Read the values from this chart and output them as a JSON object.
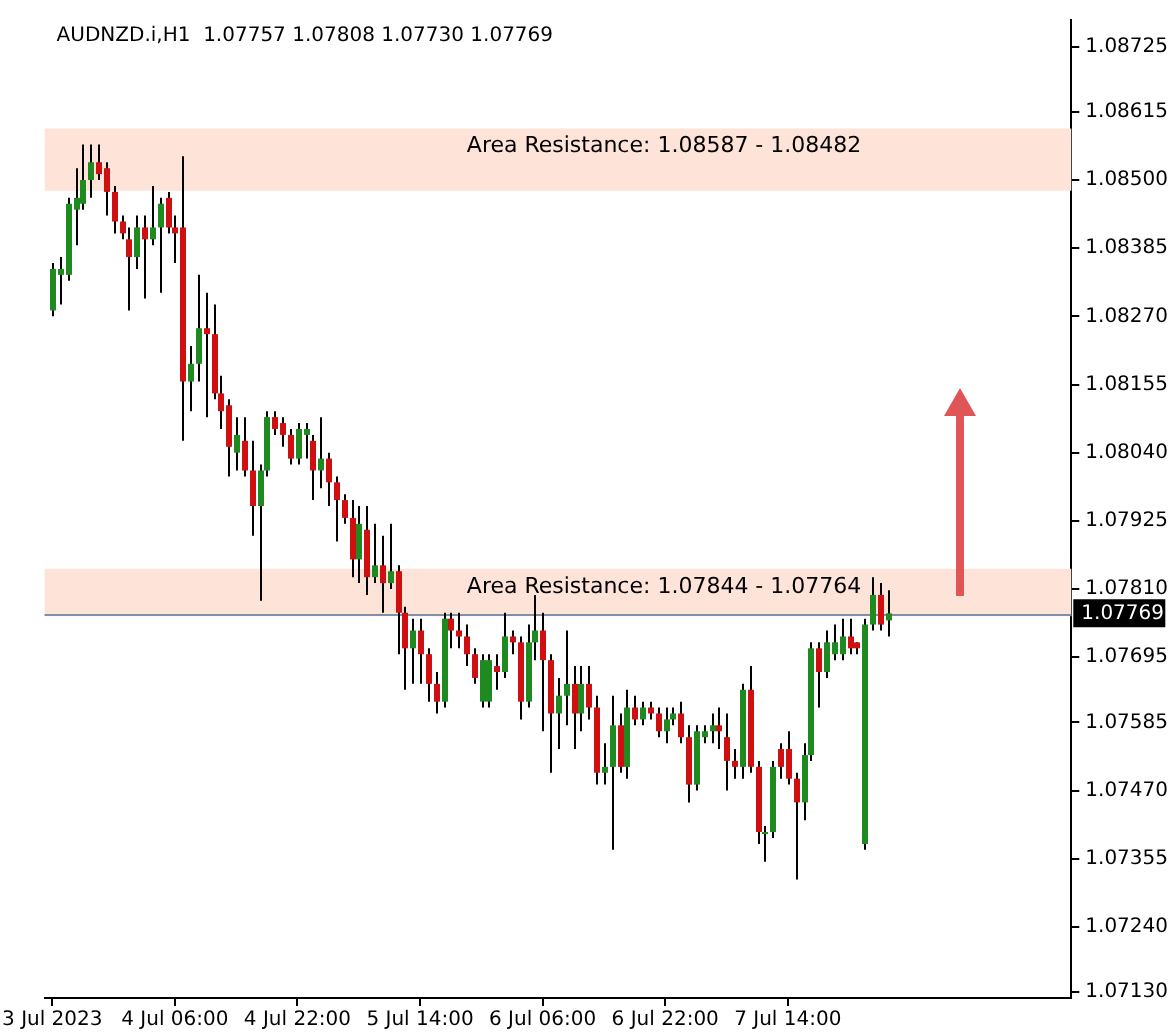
{
  "chart_data": {
    "type": "candlestick",
    "title": "AUDNZD.i,H1  1.07757 1.07808 1.07730 1.07769",
    "x": [
      "2023-07-03T14:00",
      "2023-07-03T15:00",
      "2023-07-03T16:00",
      "2023-07-03T17:00",
      "2023-07-03T18:00",
      "2023-07-03T19:00",
      "2023-07-03T20:00",
      "2023-07-03T21:00",
      "2023-07-03T22:00",
      "2023-07-03T23:00",
      "2023-07-04T00:00",
      "2023-07-04T01:00",
      "2023-07-04T02:00",
      "2023-07-04T03:00",
      "2023-07-04T04:00",
      "2023-07-04T05:00",
      "2023-07-04T06:00",
      "2023-07-04T07:00",
      "2023-07-04T08:00",
      "2023-07-04T09:00",
      "2023-07-04T10:00",
      "2023-07-04T11:00",
      "2023-07-04T12:00",
      "2023-07-04T13:00",
      "2023-07-04T14:00",
      "2023-07-04T15:00",
      "2023-07-04T16:00",
      "2023-07-04T17:00",
      "2023-07-04T18:00",
      "2023-07-04T19:00",
      "2023-07-04T20:00",
      "2023-07-04T21:00",
      "2023-07-04T22:00",
      "2023-07-04T23:00",
      "2023-07-05T00:00",
      "2023-07-05T01:00",
      "2023-07-05T02:00",
      "2023-07-05T03:00",
      "2023-07-05T04:00",
      "2023-07-05T05:00",
      "2023-07-05T06:00",
      "2023-07-05T07:00",
      "2023-07-05T08:00",
      "2023-07-05T09:00",
      "2023-07-05T10:00",
      "2023-07-05T11:00",
      "2023-07-05T12:00",
      "2023-07-05T13:00",
      "2023-07-05T14:00",
      "2023-07-05T15:00",
      "2023-07-05T16:00",
      "2023-07-05T17:00",
      "2023-07-05T18:00",
      "2023-07-05T19:00",
      "2023-07-05T20:00",
      "2023-07-05T21:00",
      "2023-07-05T22:00",
      "2023-07-05T23:00",
      "2023-07-06T00:00",
      "2023-07-06T01:00",
      "2023-07-06T02:00",
      "2023-07-06T03:00",
      "2023-07-06T04:00",
      "2023-07-06T05:00",
      "2023-07-06T06:00",
      "2023-07-06T07:00",
      "2023-07-06T08:00",
      "2023-07-06T09:00",
      "2023-07-06T10:00",
      "2023-07-06T11:00",
      "2023-07-06T12:00",
      "2023-07-06T13:00",
      "2023-07-06T14:00",
      "2023-07-06T15:00",
      "2023-07-06T16:00",
      "2023-07-06T17:00",
      "2023-07-06T18:00",
      "2023-07-06T19:00",
      "2023-07-06T20:00",
      "2023-07-06T21:00",
      "2023-07-06T22:00",
      "2023-07-06T23:00",
      "2023-07-07T00:00",
      "2023-07-07T01:00",
      "2023-07-07T02:00",
      "2023-07-07T03:00",
      "2023-07-07T04:00",
      "2023-07-07T05:00",
      "2023-07-07T06:00",
      "2023-07-07T07:00",
      "2023-07-07T08:00",
      "2023-07-07T09:00",
      "2023-07-07T10:00",
      "2023-07-07T11:00",
      "2023-07-07T12:00",
      "2023-07-07T13:00",
      "2023-07-07T14:00",
      "2023-07-07T15:00",
      "2023-07-07T16:00",
      "2023-07-07T17:00",
      "2023-07-07T18:00",
      "2023-07-07T19:00",
      "2023-07-07T20:00",
      "2023-07-07T21:00",
      "2023-07-07T22:00",
      "2023-07-07T23:00",
      "2023-07-08T00:00",
      "2023-07-08T01:00",
      "2023-07-08T02:00",
      "2023-07-08T03:00"
    ],
    "xlim": [
      "2023-07-03T13:00",
      "2023-07-09T03:00"
    ],
    "xticks": [
      {
        "value": "2023-07-03T14:00",
        "label": "3 Jul 2023"
      },
      {
        "value": "2023-07-04T06:00",
        "label": "4 Jul 06:00"
      },
      {
        "value": "2023-07-04T22:00",
        "label": "4 Jul 22:00"
      },
      {
        "value": "2023-07-05T14:00",
        "label": "5 Jul 14:00"
      },
      {
        "value": "2023-07-06T06:00",
        "label": "6 Jul 06:00"
      },
      {
        "value": "2023-07-06T22:00",
        "label": "6 Jul 22:00"
      },
      {
        "value": "2023-07-07T14:00",
        "label": "7 Jul 14:00"
      }
    ],
    "ohlc": [
      [
        1.0828,
        1.0836,
        1.0827,
        1.0835
      ],
      [
        1.0834,
        1.0837,
        1.0829,
        1.0835
      ],
      [
        1.0834,
        1.0847,
        1.0833,
        1.0846
      ],
      [
        1.0845,
        1.0852,
        1.0839,
        1.0847
      ],
      [
        1.0846,
        1.0856,
        1.0845,
        1.085
      ],
      [
        1.085,
        1.0856,
        1.0847,
        1.0853
      ],
      [
        1.0853,
        1.0856,
        1.085,
        1.0851
      ],
      [
        1.0852,
        1.0853,
        1.0844,
        1.0848
      ],
      [
        1.0848,
        1.0849,
        1.0841,
        1.0843
      ],
      [
        1.0843,
        1.0844,
        1.084,
        1.0841
      ],
      [
        1.084,
        1.0842,
        1.0828,
        1.0837
      ],
      [
        1.0837,
        1.0844,
        1.0835,
        1.0842
      ],
      [
        1.0842,
        1.0844,
        1.083,
        1.084
      ],
      [
        1.084,
        1.0849,
        1.0839,
        1.0842
      ],
      [
        1.0842,
        1.0847,
        1.0831,
        1.0846
      ],
      [
        1.0847,
        1.0848,
        1.0841,
        1.0842
      ],
      [
        1.0842,
        1.0844,
        1.0836,
        1.0841
      ],
      [
        1.0842,
        1.0854,
        1.0806,
        1.0816
      ],
      [
        1.0816,
        1.0822,
        1.0811,
        1.0819
      ],
      [
        1.0819,
        1.0834,
        1.0816,
        1.0825
      ],
      [
        1.0825,
        1.0831,
        1.081,
        1.0824
      ],
      [
        1.0824,
        1.0829,
        1.0813,
        1.0814
      ],
      [
        1.0814,
        1.0817,
        1.0808,
        1.0811
      ],
      [
        1.0812,
        1.0813,
        1.08,
        1.0805
      ],
      [
        1.0804,
        1.081,
        1.0801,
        1.0807
      ],
      [
        1.0806,
        1.081,
        1.08,
        1.0801
      ],
      [
        1.0801,
        1.0806,
        1.079,
        1.0795
      ],
      [
        1.0795,
        1.0802,
        1.0779,
        1.0801
      ],
      [
        1.0801,
        1.0811,
        1.08,
        1.081
      ],
      [
        1.081,
        1.0811,
        1.0807,
        1.0808
      ],
      [
        1.0809,
        1.081,
        1.0805,
        1.0807
      ],
      [
        1.0807,
        1.0808,
        1.0802,
        1.0803
      ],
      [
        1.0803,
        1.0809,
        1.0802,
        1.0808
      ],
      [
        1.0807,
        1.0809,
        1.0803,
        1.0808
      ],
      [
        1.0806,
        1.0807,
        1.0796,
        1.0801
      ],
      [
        1.0801,
        1.081,
        1.0798,
        1.0803
      ],
      [
        1.0803,
        1.0804,
        1.0795,
        1.0799
      ],
      [
        1.0799,
        1.08,
        1.0789,
        1.0796
      ],
      [
        1.0796,
        1.0797,
        1.0792,
        1.0793
      ],
      [
        1.0793,
        1.0796,
        1.0783,
        1.0786
      ],
      [
        1.0786,
        1.0795,
        1.0782,
        1.0792
      ],
      [
        1.0791,
        1.0795,
        1.078,
        1.0783
      ],
      [
        1.0783,
        1.0792,
        1.0782,
        1.0785
      ],
      [
        1.0785,
        1.079,
        1.0777,
        1.0782
      ],
      [
        1.0782,
        1.0792,
        1.0781,
        1.0784
      ],
      [
        1.0784,
        1.0785,
        1.077,
        1.0777
      ],
      [
        1.0777,
        1.0778,
        1.0764,
        1.0771
      ],
      [
        1.0771,
        1.0776,
        1.0765,
        1.0774
      ],
      [
        1.0774,
        1.0776,
        1.0765,
        1.077
      ],
      [
        1.077,
        1.0771,
        1.0762,
        1.0765
      ],
      [
        1.0765,
        1.0767,
        1.076,
        1.0762
      ],
      [
        1.0762,
        1.0777,
        1.0761,
        1.0776
      ],
      [
        1.0776,
        1.0777,
        1.0771,
        1.0774
      ],
      [
        1.0774,
        1.0777,
        1.0771,
        1.0773
      ],
      [
        1.0773,
        1.0775,
        1.0768,
        1.077
      ],
      [
        1.077,
        1.0771,
        1.0765,
        1.0766
      ],
      [
        1.0762,
        1.077,
        1.0761,
        1.0769
      ],
      [
        1.0762,
        1.077,
        1.0761,
        1.0769
      ],
      [
        1.0768,
        1.077,
        1.0764,
        1.0767
      ],
      [
        1.0767,
        1.0777,
        1.0766,
        1.0773
      ],
      [
        1.0773,
        1.0774,
        1.077,
        1.0772
      ],
      [
        1.0772,
        1.0773,
        1.0759,
        1.0762
      ],
      [
        1.0762,
        1.0775,
        1.0761,
        1.0772
      ],
      [
        1.0772,
        1.078,
        1.0769,
        1.0774
      ],
      [
        1.0774,
        1.0777,
        1.0757,
        1.0769
      ],
      [
        1.0769,
        1.077,
        1.075,
        1.076
      ],
      [
        1.076,
        1.0766,
        1.0754,
        1.0763
      ],
      [
        1.0763,
        1.0774,
        1.0758,
        1.0765
      ],
      [
        1.0765,
        1.0768,
        1.0754,
        1.076
      ],
      [
        1.076,
        1.0768,
        1.0757,
        1.0765
      ],
      [
        1.0765,
        1.0768,
        1.0759,
        1.0761
      ],
      [
        1.0761,
        1.0763,
        1.0748,
        1.075
      ],
      [
        1.075,
        1.0755,
        1.0748,
        1.0751
      ],
      [
        1.0751,
        1.0763,
        1.0737,
        1.0758
      ],
      [
        1.0758,
        1.076,
        1.075,
        1.0751
      ],
      [
        1.0751,
        1.0764,
        1.0749,
        1.0761
      ],
      [
        1.0761,
        1.0763,
        1.0758,
        1.0759
      ],
      [
        1.0759,
        1.0762,
        1.0758,
        1.0761
      ],
      [
        1.0761,
        1.0762,
        1.0759,
        1.076
      ],
      [
        1.076,
        1.0761,
        1.0756,
        1.0757
      ],
      [
        1.0757,
        1.0761,
        1.0755,
        1.0759
      ],
      [
        1.0759,
        1.0761,
        1.0758,
        1.076
      ],
      [
        1.076,
        1.0762,
        1.0755,
        1.0756
      ],
      [
        1.0756,
        1.0758,
        1.0745,
        1.0748
      ],
      [
        1.0748,
        1.0758,
        1.0747,
        1.0757
      ],
      [
        1.0756,
        1.0758,
        1.0755,
        1.0757
      ],
      [
        1.0757,
        1.076,
        1.0755,
        1.0758
      ],
      [
        1.0758,
        1.0761,
        1.0754,
        1.0757
      ],
      [
        1.0756,
        1.076,
        1.0747,
        1.0752
      ],
      [
        1.0752,
        1.0754,
        1.0749,
        1.0751
      ],
      [
        1.0751,
        1.0765,
        1.0749,
        1.0764
      ],
      [
        1.0764,
        1.0768,
        1.075,
        1.0751
      ],
      [
        1.0751,
        1.0752,
        1.0738,
        1.074
      ],
      [
        1.074,
        1.0741,
        1.0735,
        1.074
      ],
      [
        1.074,
        1.0752,
        1.0739,
        1.0751
      ],
      [
        1.0754,
        1.0755,
        1.0749,
        1.0751
      ],
      [
        1.0754,
        1.0757,
        1.0748,
        1.0749
      ],
      [
        1.0749,
        1.075,
        1.0732,
        1.0745
      ],
      [
        1.0745,
        1.0755,
        1.0742,
        1.0753
      ],
      [
        1.0753,
        1.0772,
        1.0752,
        1.0771
      ],
      [
        1.0771,
        1.0772,
        1.0761,
        1.0767
      ],
      [
        1.0767,
        1.0774,
        1.0766,
        1.0772
      ],
      [
        1.077,
        1.0775,
        1.0769,
        1.0772
      ],
      [
        1.077,
        1.0776,
        1.0769,
        1.0773
      ],
      [
        1.0773,
        1.0776,
        1.077,
        1.0771
      ],
      [
        1.0772,
        1.0772,
        1.077,
        1.0771
      ],
      [
        1.0738,
        1.0776,
        1.0737,
        1.0775
      ],
      [
        1.0775,
        1.0783,
        1.0774,
        1.078
      ],
      [
        1.078,
        1.0782,
        1.0774,
        1.0775
      ],
      [
        1.07757,
        1.07808,
        1.0773,
        1.07769
      ]
    ],
    "ylim": [
      1.0712,
      1.0877
    ],
    "yticks": [
      1.08725,
      1.08615,
      {
        "value": 1.085,
        "label": "1.08500"
      },
      1.08385,
      {
        "value": 1.0827,
        "label": "1.08270"
      },
      1.08155,
      {
        "value": 1.0804,
        "label": "1.08040"
      },
      1.07925,
      {
        "value": 1.0781,
        "label": "1.07810"
      },
      1.07695,
      1.07585,
      {
        "value": 1.0747,
        "label": "1.07470"
      },
      1.07355,
      {
        "value": 1.0724,
        "label": "1.07240"
      },
      {
        "value": 1.0713,
        "label": "1.07130"
      }
    ],
    "bands": [
      {
        "axis": "y",
        "from": 1.08482,
        "to": 1.08587,
        "label": "Area Resistance: 1.08587 - 1.08482",
        "color": "#fde3d8"
      },
      {
        "axis": "y",
        "from": 1.07764,
        "to": 1.07844,
        "label": "Area Resistance: 1.07844 - 1.07764",
        "color": "#fde3d8"
      }
    ],
    "ref_lines": [
      {
        "axis": "y",
        "value": 1.07769,
        "label": "1.07769",
        "color": "#8090a8"
      }
    ],
    "grid": false,
    "legend": false
  }
}
